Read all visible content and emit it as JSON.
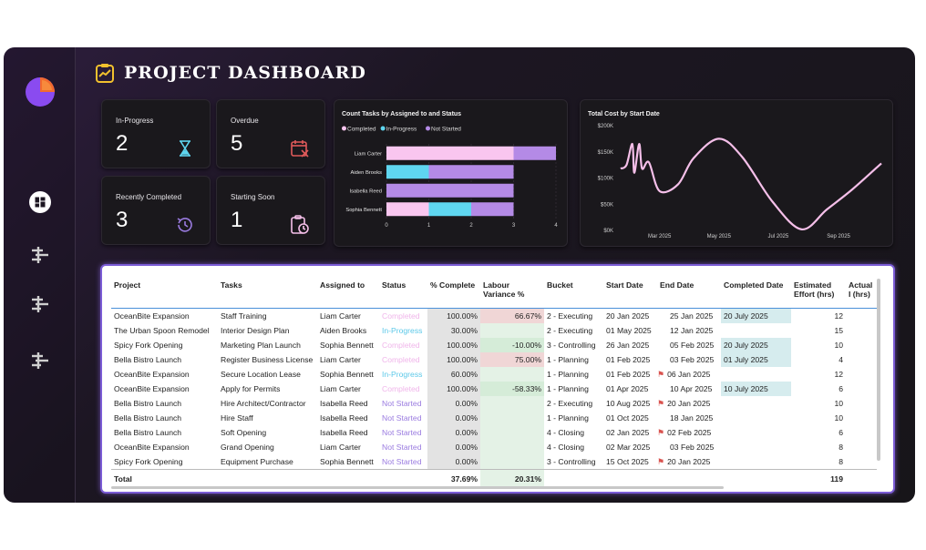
{
  "header": {
    "title": "PROJECT DASHBOARD"
  },
  "nav": {
    "icons": [
      "pie-chart-icon",
      "dashboard-icon",
      "gantt-icon",
      "gantt-icon",
      "gantt-icon"
    ]
  },
  "kpis": {
    "inprogress": {
      "label": "In-Progress",
      "value": "2",
      "icon": "hourglass-icon"
    },
    "overdue": {
      "label": "Overdue",
      "value": "5",
      "icon": "calendar-x-icon"
    },
    "recent": {
      "label": "Recently Completed",
      "value": "3",
      "icon": "history-icon"
    },
    "soon": {
      "label": "Starting Soon",
      "value": "1",
      "icon": "clipboard-clock-icon"
    }
  },
  "colors": {
    "completed": "#f9c6ef",
    "inprogress": "#5fd6f0",
    "notstarted": "#b48ae6",
    "line": "#f5bfe9",
    "accent": "#f2c12e"
  },
  "chart_data": [
    {
      "type": "bar",
      "title": "Count Tasks by Assigned to and Status",
      "orientation": "horizontal",
      "stacked": true,
      "legend": [
        "Completed",
        "In-Progress",
        "Not Started"
      ],
      "categories": [
        "Liam Carter",
        "Aiden Brooks",
        "Isabella Reed",
        "Sophia Bennett"
      ],
      "series": [
        {
          "name": "Completed",
          "values": [
            3,
            0,
            0,
            1
          ]
        },
        {
          "name": "In-Progress",
          "values": [
            0,
            1,
            0,
            1
          ]
        },
        {
          "name": "Not Started",
          "values": [
            1,
            2,
            3,
            1
          ]
        }
      ],
      "xticks": [
        "0",
        "1",
        "2",
        "3",
        "4"
      ],
      "xlim": [
        0,
        4
      ]
    },
    {
      "type": "line",
      "title": "Total Cost by Start Date",
      "yticks": [
        "$200K",
        "$150K",
        "$100K",
        "$50K",
        "$0K"
      ],
      "xticks": [
        "Mar 2025",
        "May 2025",
        "Jul 2025",
        "Sep 2025"
      ],
      "ylim": [
        0,
        200000
      ],
      "x": [
        "2025-01-20",
        "2025-01-26",
        "2025-02-01",
        "2025-02-03",
        "2025-02-08",
        "2025-02-11",
        "2025-02-18",
        "2025-03-01",
        "2025-03-20",
        "2025-04-05",
        "2025-05-01",
        "2025-05-25",
        "2025-06-25",
        "2025-07-25",
        "2025-08-20",
        "2025-09-15",
        "2025-10-15"
      ],
      "y": [
        118000,
        125000,
        165000,
        110000,
        165000,
        118000,
        130000,
        75000,
        88000,
        138000,
        175000,
        140000,
        55000,
        2000,
        40000,
        78000,
        128000
      ]
    }
  ],
  "table": {
    "headers": [
      "Project",
      "Tasks",
      "Assigned to",
      "Status",
      "% Complete",
      "Labour Variance %",
      "Bucket",
      "Start Date",
      "End Date",
      "Completed Date",
      "Estimated Effort (hrs)",
      "Actual I (hrs)"
    ],
    "rows": [
      [
        "OceanBite Expansion",
        "Staff Training",
        "Liam Carter",
        "Completed",
        "100.00%",
        "66.67%",
        "2 - Executing",
        "20 Jan 2025",
        "25 Jan 2025",
        "20 July 2025",
        "12",
        ""
      ],
      [
        "The Urban Spoon Remodel",
        "Interior Design Plan",
        "Aiden Brooks",
        "In-Progress",
        "30.00%",
        "",
        "2 - Executing",
        "01 May 2025",
        "12 Jan 2025",
        "",
        "15",
        ""
      ],
      [
        "Spicy Fork Opening",
        "Marketing Plan Launch",
        "Sophia Bennett",
        "Completed",
        "100.00%",
        "-10.00%",
        "3 - Controlling",
        "26 Jan 2025",
        "05 Feb 2025",
        "20 July 2025",
        "10",
        ""
      ],
      [
        "Bella Bistro Launch",
        "Register Business License",
        "Liam Carter",
        "Completed",
        "100.00%",
        "75.00%",
        "1 - Planning",
        "01 Feb 2025",
        "03 Feb 2025",
        "01 July 2025",
        "4",
        ""
      ],
      [
        "OceanBite Expansion",
        "Secure Location Lease",
        "Sophia Bennett",
        "In-Progress",
        "60.00%",
        "",
        "1 - Planning",
        "01 Feb 2025",
        "06 Jan 2025",
        "",
        "12",
        ""
      ],
      [
        "OceanBite Expansion",
        "Apply for Permits",
        "Liam Carter",
        "Completed",
        "100.00%",
        "-58.33%",
        "1 - Planning",
        "01 Apr 2025",
        "10 Apr 2025",
        "10 July 2025",
        "6",
        ""
      ],
      [
        "Bella Bistro Launch",
        "Hire Architect/Contractor",
        "Isabella Reed",
        "Not Started",
        "0.00%",
        "",
        "2 - Executing",
        "10 Aug 2025",
        "20 Jan 2025",
        "",
        "10",
        ""
      ],
      [
        "Bella Bistro Launch",
        "Hire Staff",
        "Isabella Reed",
        "Not Started",
        "0.00%",
        "",
        "1 - Planning",
        "01 Oct 2025",
        "18 Jan 2025",
        "",
        "10",
        ""
      ],
      [
        "Bella Bistro Launch",
        "Soft Opening",
        "Isabella Reed",
        "Not Started",
        "0.00%",
        "",
        "4 - Closing",
        "02 Jan 2025",
        "02 Feb 2025",
        "",
        "6",
        ""
      ],
      [
        "OceanBite Expansion",
        "Grand Opening",
        "Liam Carter",
        "Not Started",
        "0.00%",
        "",
        "4 - Closing",
        "02 Mar 2025",
        "03 Feb 2025",
        "",
        "8",
        ""
      ],
      [
        "Spicy Fork Opening",
        "Equipment Purchase",
        "Sophia Bennett",
        "Not Started",
        "0.00%",
        "",
        "3 - Controlling",
        "15 Oct 2025",
        "20 Jan 2025",
        "",
        "8",
        ""
      ]
    ],
    "row_flags": [
      false,
      false,
      false,
      false,
      true,
      false,
      true,
      false,
      true,
      false,
      true
    ],
    "lv_styles": [
      "lv-red",
      "lv-plain",
      "lv-green",
      "lv-red",
      "lv-plain",
      "lv-green",
      "lv-plain",
      "lv-plain",
      "lv-plain",
      "lv-plain",
      "lv-plain"
    ],
    "total": {
      "label": "Total",
      "pct": "37.69%",
      "lv": "20.31%",
      "effort": "119"
    }
  }
}
